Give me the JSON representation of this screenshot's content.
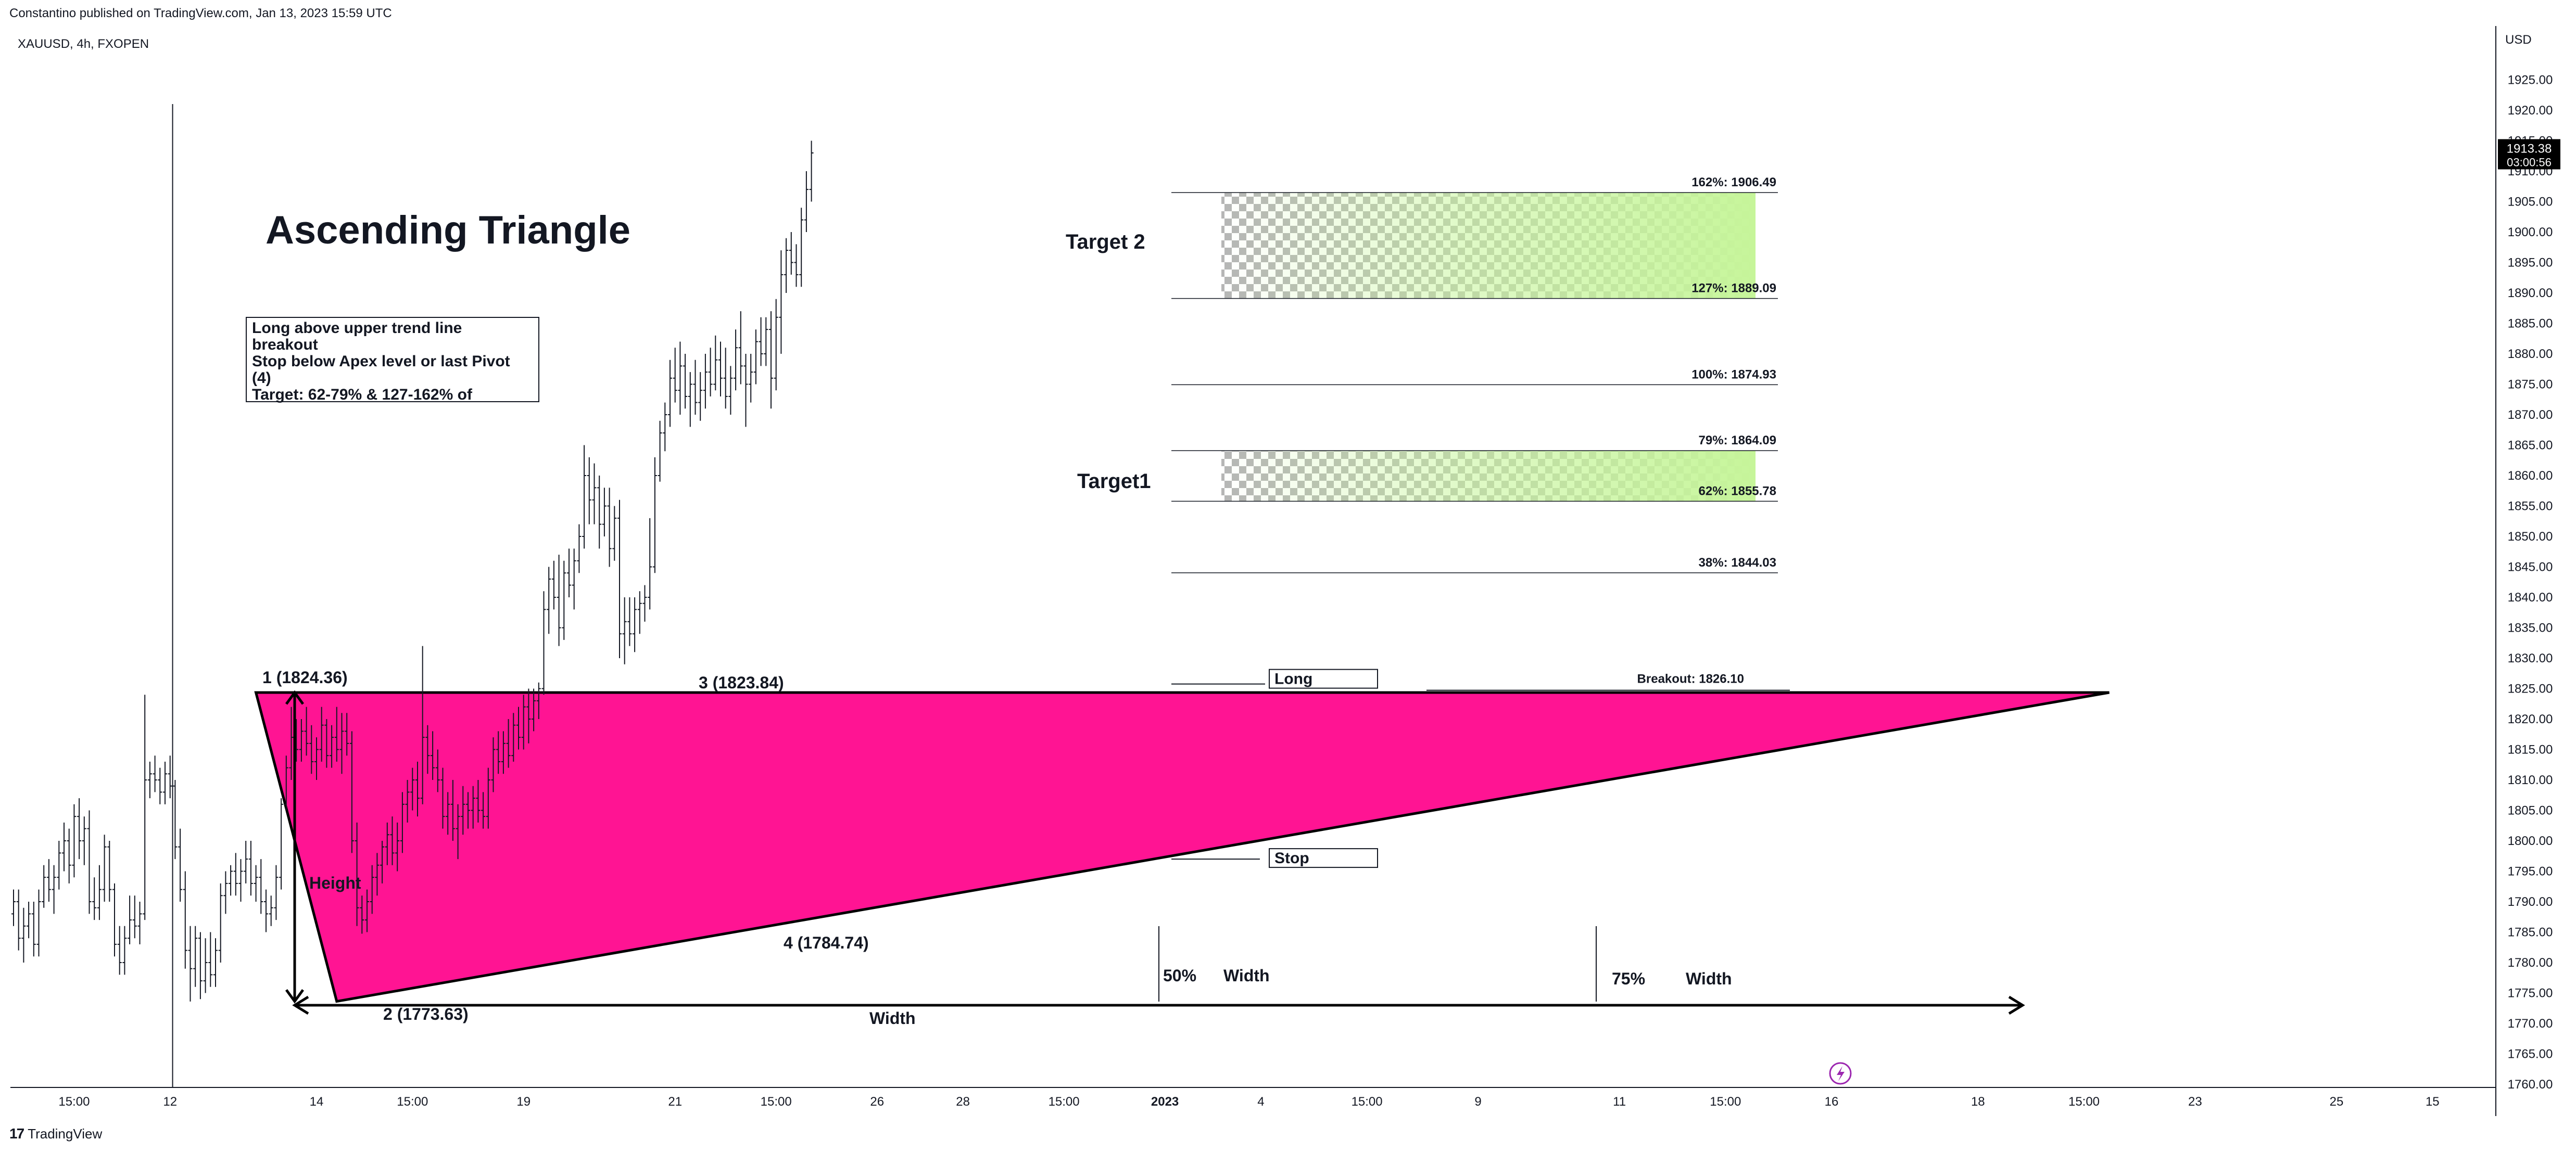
{
  "header": {
    "published_by": "Constantino published on TradingView.com, Jan 13, 2023 15:59 UTC",
    "symbol": "XAUUSD, 4h, FXOPEN",
    "currency": "USD"
  },
  "footer": {
    "brand": "TradingView"
  },
  "colors": {
    "triangle_fill": "#ff1493",
    "target_green": "#c6f59a",
    "checker_gray": "#9e9e9e",
    "price_tag_bg": "#000000",
    "axis_line": "#131722"
  },
  "chart_data": {
    "type": "bar",
    "title": "Ascending Triangle",
    "ylim": [
      1760,
      1930
    ],
    "yticks": [
      1760,
      1765,
      1770,
      1775,
      1780,
      1785,
      1790,
      1795,
      1800,
      1805,
      1810,
      1815,
      1820,
      1825,
      1830,
      1835,
      1840,
      1845,
      1850,
      1855,
      1860,
      1865,
      1870,
      1875,
      1880,
      1885,
      1890,
      1895,
      1900,
      1905,
      1910,
      1915,
      1920,
      1925
    ],
    "ytick_labels": [
      "1760.00",
      "1765.00",
      "1770.00",
      "1775.00",
      "1780.00",
      "1785.00",
      "1790.00",
      "1795.00",
      "1800.00",
      "1805.00",
      "1810.00",
      "1815.00",
      "1820.00",
      "1825.00",
      "1830.00",
      "1835.00",
      "1840.00",
      "1845.00",
      "1850.00",
      "1855.00",
      "1860.00",
      "1865.00",
      "1870.00",
      "1875.00",
      "1880.00",
      "1885.00",
      "1890.00",
      "1895.00",
      "1900.00",
      "1905.00",
      "1910.00",
      "1915.00",
      "1920.00",
      "1925.00"
    ],
    "xticks": [
      {
        "label": "15:00",
        "bar": 12
      },
      {
        "label": "12",
        "bar": 31
      },
      {
        "label": "14",
        "bar": 60
      },
      {
        "label": "15:00",
        "bar": 79
      },
      {
        "label": "19",
        "bar": 101
      },
      {
        "label": "21",
        "bar": 131
      },
      {
        "label": "15:00",
        "bar": 151
      },
      {
        "label": "26",
        "bar": 171
      },
      {
        "label": "28",
        "bar": 188
      },
      {
        "label": "15:00",
        "bar": 208
      },
      {
        "label": "2023",
        "bar": 228
      },
      {
        "label": "4",
        "bar": 247
      },
      {
        "label": "15:00",
        "bar": 268
      },
      {
        "label": "9",
        "bar": 290
      },
      {
        "label": "11",
        "bar": 318
      },
      {
        "label": "15:00",
        "bar": 339
      },
      {
        "label": "16",
        "bar": 360
      },
      {
        "label": "18",
        "bar": 389
      },
      {
        "label": "15:00",
        "bar": 410
      },
      {
        "label": "23",
        "bar": 432
      },
      {
        "label": "25",
        "bar": 460
      },
      {
        "label": "15",
        "bar": 479
      }
    ],
    "ohlc": [
      [
        1788,
        1792,
        1786,
        1790
      ],
      [
        1790,
        1792,
        1782,
        1784
      ],
      [
        1784,
        1789,
        1780,
        1786
      ],
      [
        1786,
        1790,
        1784,
        1788
      ],
      [
        1788,
        1790,
        1781,
        1783
      ],
      [
        1783,
        1792,
        1781,
        1790
      ],
      [
        1790,
        1796,
        1789,
        1794
      ],
      [
        1794,
        1797,
        1790,
        1792
      ],
      [
        1792,
        1796,
        1788,
        1794
      ],
      [
        1794,
        1800,
        1792,
        1798
      ],
      [
        1798,
        1803,
        1795,
        1800
      ],
      [
        1800,
        1802,
        1793,
        1796
      ],
      [
        1796,
        1806,
        1794,
        1804
      ],
      [
        1804,
        1807,
        1797,
        1800
      ],
      [
        1800,
        1804,
        1796,
        1802
      ],
      [
        1802,
        1805,
        1788,
        1790
      ],
      [
        1790,
        1794,
        1787,
        1789
      ],
      [
        1789,
        1796,
        1787,
        1792
      ],
      [
        1792,
        1801,
        1790,
        1799
      ],
      [
        1799,
        1800,
        1790,
        1792
      ],
      [
        1792,
        1793,
        1781,
        1783
      ],
      [
        1783,
        1786,
        1778,
        1780
      ],
      [
        1780,
        1786,
        1778,
        1784
      ],
      [
        1784,
        1791,
        1783,
        1787
      ],
      [
        1787,
        1791,
        1784,
        1786
      ],
      [
        1786,
        1790,
        1783,
        1788
      ],
      [
        1788,
        1824,
        1787,
        1810
      ],
      [
        1810,
        1813,
        1807,
        1811
      ],
      [
        1811,
        1814,
        1808,
        1810
      ],
      [
        1810,
        1812,
        1806,
        1808
      ],
      [
        1808,
        1813,
        1806,
        1811
      ],
      [
        1811,
        1814,
        1807,
        1809
      ],
      [
        1809,
        1810,
        1797,
        1799
      ],
      [
        1799,
        1802,
        1790,
        1792
      ],
      [
        1792,
        1795,
        1779,
        1782
      ],
      [
        1782,
        1786,
        1773.6,
        1779
      ],
      [
        1779,
        1786,
        1776,
        1784
      ],
      [
        1784,
        1785,
        1774,
        1777
      ],
      [
        1777,
        1784,
        1775,
        1780
      ],
      [
        1780,
        1785,
        1776,
        1778
      ],
      [
        1778,
        1784,
        1776,
        1782
      ],
      [
        1782,
        1793,
        1780,
        1791
      ],
      [
        1791,
        1795,
        1788,
        1793
      ],
      [
        1793,
        1796,
        1791,
        1795
      ],
      [
        1795,
        1798,
        1791,
        1793
      ],
      [
        1793,
        1797,
        1790,
        1795
      ],
      [
        1795,
        1800,
        1793,
        1797
      ],
      [
        1797,
        1800,
        1791,
        1793
      ],
      [
        1793,
        1796,
        1790,
        1794
      ],
      [
        1794,
        1797,
        1788,
        1790
      ],
      [
        1790,
        1792,
        1785,
        1788
      ],
      [
        1788,
        1791,
        1786,
        1789
      ],
      [
        1789,
        1796,
        1787,
        1794
      ],
      [
        1794,
        1807,
        1792,
        1806
      ],
      [
        1806,
        1814,
        1805,
        1812
      ],
      [
        1812,
        1822,
        1810,
        1817
      ],
      [
        1817,
        1820,
        1813,
        1815
      ],
      [
        1815,
        1820,
        1813,
        1818
      ],
      [
        1818,
        1822,
        1814,
        1816
      ],
      [
        1816,
        1819,
        1811,
        1813
      ],
      [
        1813,
        1817,
        1810,
        1815
      ],
      [
        1815,
        1822,
        1813,
        1819
      ],
      [
        1819,
        1820,
        1812,
        1814
      ],
      [
        1814,
        1819,
        1812,
        1817
      ],
      [
        1817,
        1822,
        1813,
        1815
      ],
      [
        1815,
        1821,
        1811,
        1818
      ],
      [
        1818,
        1821,
        1814,
        1816
      ],
      [
        1816,
        1818,
        1798,
        1800
      ],
      [
        1800,
        1803,
        1786,
        1789
      ],
      [
        1789,
        1791,
        1784.74,
        1787
      ],
      [
        1787,
        1792,
        1785,
        1790
      ],
      [
        1790,
        1796,
        1788,
        1794
      ],
      [
        1794,
        1798,
        1791,
        1796
      ],
      [
        1796,
        1800,
        1793,
        1799
      ],
      [
        1799,
        1803,
        1796,
        1801
      ],
      [
        1801,
        1804,
        1796,
        1798
      ],
      [
        1798,
        1803,
        1795,
        1800
      ],
      [
        1800,
        1808,
        1798,
        1806
      ],
      [
        1806,
        1810,
        1803,
        1808
      ],
      [
        1808,
        1812,
        1805,
        1810
      ],
      [
        1810,
        1813,
        1804,
        1807
      ],
      [
        1807,
        1832,
        1806,
        1817
      ],
      [
        1817,
        1819,
        1811,
        1814
      ],
      [
        1814,
        1818,
        1810,
        1812
      ],
      [
        1812,
        1815,
        1808,
        1810
      ],
      [
        1810,
        1812,
        1802,
        1804
      ],
      [
        1804,
        1808,
        1801,
        1806
      ],
      [
        1806,
        1810,
        1800,
        1802
      ],
      [
        1802,
        1806,
        1797,
        1804
      ],
      [
        1804,
        1809,
        1801,
        1806
      ],
      [
        1806,
        1808,
        1802,
        1805
      ],
      [
        1805,
        1809,
        1802,
        1807
      ],
      [
        1807,
        1810,
        1803,
        1805
      ],
      [
        1805,
        1808,
        1802,
        1804
      ],
      [
        1804,
        1812,
        1802,
        1810
      ],
      [
        1810,
        1817,
        1808,
        1815
      ],
      [
        1815,
        1818,
        1811,
        1813
      ],
      [
        1813,
        1818,
        1811,
        1816
      ],
      [
        1816,
        1820,
        1812,
        1814
      ],
      [
        1814,
        1821,
        1813,
        1819
      ],
      [
        1819,
        1822,
        1815,
        1817
      ],
      [
        1817,
        1824,
        1815,
        1822
      ],
      [
        1822,
        1825,
        1816,
        1820
      ],
      [
        1820,
        1825,
        1818,
        1823
      ],
      [
        1823,
        1826,
        1820,
        1825
      ],
      [
        1825,
        1841,
        1824,
        1838
      ],
      [
        1838,
        1845,
        1834,
        1843
      ],
      [
        1843,
        1846,
        1838,
        1840
      ],
      [
        1840,
        1847,
        1832,
        1835
      ],
      [
        1835,
        1846,
        1833,
        1844
      ],
      [
        1844,
        1848,
        1840,
        1842
      ],
      [
        1842,
        1848,
        1838,
        1846
      ],
      [
        1846,
        1852,
        1844,
        1850
      ],
      [
        1850,
        1865,
        1848,
        1860
      ],
      [
        1860,
        1863,
        1852,
        1856
      ],
      [
        1856,
        1862,
        1852,
        1858
      ],
      [
        1858,
        1860,
        1848,
        1852
      ],
      [
        1852,
        1858,
        1850,
        1855
      ],
      [
        1855,
        1858,
        1845,
        1848
      ],
      [
        1848,
        1855,
        1846,
        1853
      ],
      [
        1853,
        1856,
        1830,
        1834
      ],
      [
        1834,
        1840,
        1829,
        1836
      ],
      [
        1836,
        1840,
        1832,
        1834
      ],
      [
        1834,
        1840,
        1831,
        1838
      ],
      [
        1838,
        1841,
        1834,
        1839
      ],
      [
        1839,
        1842,
        1836,
        1840
      ],
      [
        1840,
        1853,
        1838,
        1845
      ],
      [
        1845,
        1863,
        1844,
        1860
      ],
      [
        1860,
        1869,
        1859,
        1867
      ],
      [
        1867,
        1872,
        1864,
        1870
      ],
      [
        1870,
        1879,
        1868,
        1876
      ],
      [
        1876,
        1881,
        1872,
        1874
      ],
      [
        1874,
        1882,
        1870,
        1878
      ],
      [
        1878,
        1880,
        1871,
        1873
      ],
      [
        1873,
        1877,
        1868,
        1875
      ],
      [
        1875,
        1879,
        1870,
        1872
      ],
      [
        1872,
        1877,
        1869,
        1874
      ],
      [
        1874,
        1880,
        1871,
        1877
      ],
      [
        1877,
        1881,
        1873,
        1875
      ],
      [
        1875,
        1883,
        1874,
        1879
      ],
      [
        1879,
        1882,
        1873,
        1876
      ],
      [
        1876,
        1881,
        1871,
        1873
      ],
      [
        1873,
        1878,
        1870,
        1876
      ],
      [
        1876,
        1884,
        1874,
        1881
      ],
      [
        1881,
        1887,
        1875,
        1878
      ],
      [
        1878,
        1880,
        1868,
        1875
      ],
      [
        1875,
        1880,
        1872,
        1877
      ],
      [
        1877,
        1884,
        1875,
        1882
      ],
      [
        1882,
        1886,
        1878,
        1880
      ],
      [
        1880,
        1886,
        1878,
        1884
      ],
      [
        1884,
        1887,
        1871,
        1876
      ],
      [
        1876,
        1889,
        1874,
        1886
      ],
      [
        1886,
        1897,
        1880,
        1893
      ],
      [
        1893,
        1899,
        1890,
        1897
      ],
      [
        1897,
        1900,
        1893,
        1895
      ],
      [
        1895,
        1898,
        1891,
        1893
      ],
      [
        1893,
        1904,
        1891,
        1902
      ],
      [
        1902,
        1910,
        1900,
        1907
      ],
      [
        1907,
        1915,
        1905,
        1913
      ]
    ],
    "pattern_points": [
      {
        "label": "1 (1824.36)",
        "bar": 48,
        "price": 1824.36
      },
      {
        "label": "2 (1773.63)",
        "bar": 64,
        "price": 1773.63
      },
      {
        "label": "3 (1823.84)",
        "bar": 115,
        "price": 1823.84
      },
      {
        "label": "4 (1784.74)",
        "bar": 125,
        "price": 1784.74
      }
    ],
    "apex": {
      "bar": 415,
      "price": 1824.36
    },
    "fib_levels": [
      {
        "label": "162%: 1906.49",
        "price": 1906.49
      },
      {
        "label": "127%: 1889.09",
        "price": 1889.09
      },
      {
        "label": "100%: 1874.93",
        "price": 1874.93
      },
      {
        "label": "79%: 1864.09",
        "price": 1864.09
      },
      {
        "label": "62%: 1855.78",
        "price": 1855.78
      },
      {
        "label": "38%: 1844.03",
        "price": 1844.03
      }
    ],
    "breakout": {
      "label": "Breakout: 1826.10",
      "price": 1826.1
    },
    "current_price": {
      "price": 1913.38,
      "label": "1913.38",
      "countdown": "03:00:56"
    },
    "annotations": {
      "height": "Height",
      "width": "Width",
      "fifty": "50%",
      "fifty_width": "Width",
      "seventyfive": "75%",
      "seventyfive_width": "Width",
      "target1": "Target1",
      "target2": "Target 2",
      "long": "Long",
      "stop": "Stop",
      "note_lines": [
        "Long above upper trend line",
        "breakout",
        "Stop below Apex level or last Pivot",
        "(4)",
        "Target: 62-79% & 127-162% of"
      ]
    },
    "grid": false
  }
}
